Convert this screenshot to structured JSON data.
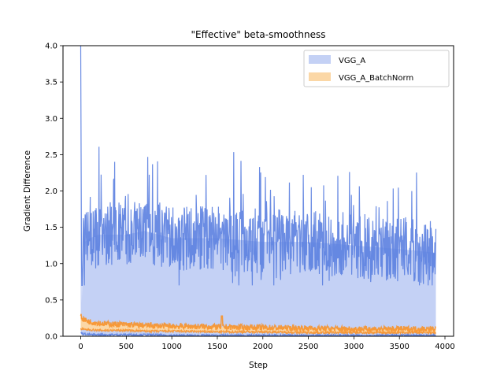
{
  "chart_data": {
    "type": "area",
    "title": "\"Effective\" beta-smoothness",
    "xlabel": "Step",
    "ylabel": "Gradient Difference",
    "xlim": [
      -195,
      4095
    ],
    "ylim": [
      0,
      4.0
    ],
    "xticks": [
      0,
      500,
      1000,
      1500,
      2000,
      2500,
      3000,
      3500,
      4000
    ],
    "yticks": [
      0.0,
      0.5,
      1.0,
      1.5,
      2.0,
      2.5,
      3.0,
      3.5,
      4.0
    ],
    "legend_position": "top-right",
    "grid": false,
    "series": [
      {
        "name": "VGG_A",
        "fill_color": "#c4d1f5",
        "line_color": "#5b7fe0",
        "x": [
          0,
          10,
          20,
          30,
          50,
          100,
          200,
          300,
          500,
          700,
          1000,
          1500,
          2000,
          2500,
          3000,
          3500,
          3900
        ],
        "upper": [
          4.0,
          0.3,
          1.1,
          1.4,
          1.3,
          1.35,
          1.4,
          1.4,
          1.4,
          1.45,
          1.35,
          1.35,
          1.3,
          1.3,
          1.25,
          1.2,
          1.15
        ],
        "lower": [
          0.05,
          0.04,
          0.04,
          0.03,
          0.03,
          0.02,
          0.02,
          0.02,
          0.02,
          0.02,
          0.01,
          0.01,
          0.01,
          0.01,
          0.01,
          0.01,
          0.01
        ],
        "peak_upper": 2.7,
        "typical_lower_of_upper": 0.8
      },
      {
        "name": "VGG_A_BatchNorm",
        "fill_color": "#fbd7a6",
        "line_color": "#f7922b",
        "x": [
          0,
          10,
          50,
          100,
          200,
          300,
          500,
          700,
          1000,
          1500,
          2000,
          2500,
          3000,
          3500,
          3900
        ],
        "upper": [
          0.3,
          0.25,
          0.22,
          0.2,
          0.18,
          0.17,
          0.16,
          0.15,
          0.14,
          0.13,
          0.12,
          0.11,
          0.1,
          0.1,
          0.1
        ],
        "lower": [
          0.1,
          0.1,
          0.09,
          0.09,
          0.08,
          0.08,
          0.08,
          0.07,
          0.07,
          0.06,
          0.06,
          0.05,
          0.05,
          0.05,
          0.05
        ]
      }
    ]
  }
}
